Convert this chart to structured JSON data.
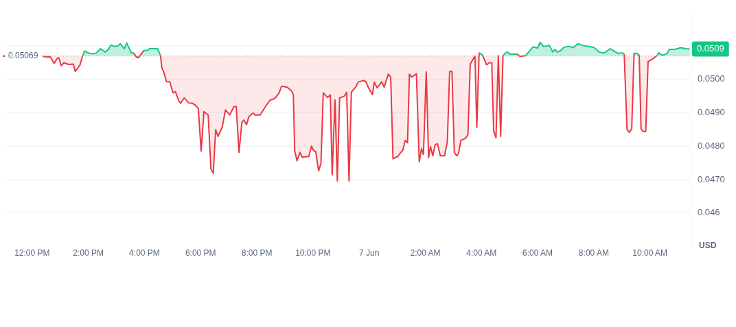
{
  "chart_data": {
    "type": "area",
    "ylabel": "USD",
    "xlim": [
      "--06-06T11:03",
      "--06-07T11:27"
    ],
    "ylim": [
      0.045,
      0.052
    ],
    "xticks": [
      {
        "value": "--06-06T12:00",
        "label": "12:00 PM"
      },
      {
        "value": "--06-06T14:00",
        "label": "2:00 PM"
      },
      {
        "value": "--06-06T16:00",
        "label": "4:00 PM"
      },
      {
        "value": "--06-06T18:00",
        "label": "6:00 PM"
      },
      {
        "value": "--06-06T20:00",
        "label": "8:00 PM"
      },
      {
        "value": "--06-06T22:00",
        "label": "10:00 PM"
      },
      {
        "value": "--06-07",
        "label": "7 Jun"
      },
      {
        "value": "--06-07T02:00",
        "label": "2:00 AM"
      },
      {
        "value": "--06-07T04:00",
        "label": "4:00 AM"
      },
      {
        "value": "--06-07T06:00",
        "label": "6:00 AM"
      },
      {
        "value": "--06-07T08:00",
        "label": "8:00 AM"
      },
      {
        "value": "--06-07T10:00",
        "label": "10:00 AM"
      }
    ],
    "yticks": [
      0.046,
      {
        "value": 0.047,
        "label": "0.0470"
      },
      {
        "value": 0.048,
        "label": "0.0480"
      },
      {
        "value": 0.049,
        "label": "0.0490"
      },
      {
        "value": 0.05,
        "label": "0.0500"
      },
      {
        "value": 0.051,
        "label": null
      }
    ],
    "grid": "y",
    "legend": false,
    "marker": "none",
    "ref_lines": [
      {
        "axis": "y",
        "value": 0.05069,
        "label": "0.05069",
        "color": "#8a919e",
        "line_style": "dotted"
      }
    ],
    "annotations": [
      "0.0509"
    ],
    "series": [
      {
        "x": [
          "--06-06T12:23",
          "--06-06T12:34",
          "--06-06T12:38",
          "--06-06T12:47",
          "--06-06T12:53",
          "--06-06T12:57",
          "--06-06T13:02",
          "--06-06T13:08",
          "--06-06T13:18",
          "--06-06T13:28",
          "--06-06T13:32",
          "--06-06T13:42",
          "--06-06T13:48",
          "--06-06T13:52",
          "--06-06T13:59",
          "--06-06T14:07",
          "--06-06T14:16",
          "--06-06T14:26",
          "--06-06T14:36",
          "--06-06T14:43",
          "--06-06T14:48",
          "--06-06T14:56",
          "--06-06T15:03",
          "--06-06T15:08",
          "--06-06T15:17",
          "--06-06T15:22",
          "--06-06T15:32",
          "--06-06T15:37",
          "--06-06T15:42",
          "--06-06T15:47",
          "--06-06T15:59",
          "--06-06T16:07",
          "--06-06T16:11",
          "--06-06T16:19",
          "--06-06T16:28",
          "--06-06T16:34",
          "--06-06T16:37",
          "--06-06T16:41",
          "--06-06T16:47",
          "--06-06T16:54",
          "--06-06T17:01",
          "--06-06T17:06",
          "--06-06T17:13",
          "--06-06T17:17",
          "--06-06T17:25",
          "--06-06T17:34",
          "--06-06T17:42",
          "--06-06T17:49",
          "--06-06T17:55",
          "--06-06T18:01",
          "--06-06T18:07",
          "--06-06T18:16",
          "--06-06T18:22",
          "--06-06T18:27",
          "--06-06T18:32",
          "--06-06T18:37",
          "--06-06T18:46",
          "--06-06T18:53",
          "--06-06T19:02",
          "--06-06T19:11",
          "--06-06T19:16",
          "--06-06T19:22",
          "--06-06T19:28",
          "--06-06T19:32",
          "--06-06T19:38",
          "--06-06T19:43",
          "--06-06T19:52",
          "--06-06T19:56",
          "--06-06T20:07",
          "--06-06T20:19",
          "--06-06T20:28",
          "--06-06T20:38",
          "--06-06T20:47",
          "--06-06T20:53",
          "--06-06T21:05",
          "--06-06T21:14",
          "--06-06T21:18",
          "--06-06T21:21",
          "--06-06T21:26",
          "--06-06T21:32",
          "--06-06T21:37",
          "--06-06T21:51",
          "--06-06T21:57",
          "--06-06T22:01",
          "--06-06T22:06",
          "--06-06T22:12",
          "--06-06T22:17",
          "--06-06T22:22",
          "--06-06T22:31",
          "--06-06T22:37",
          "--06-06T22:41",
          "--06-06T22:47",
          "--06-06T22:52",
          "--06-06T22:57",
          "--06-06T23:07",
          "--06-06T23:12",
          "--06-06T23:17",
          "--06-06T23:22",
          "--06-06T23:31",
          "--06-06T23:37",
          "--06-06T23:49",
          "--06-06T23:53",
          "--06-06T23:58",
          "--06-07T00:07",
          "--06-07T00:11",
          "--06-07T00:17",
          "--06-07T00:27",
          "--06-07T00:32",
          "--06-07T00:41",
          "--06-07T00:46",
          "--06-07T00:51",
          "--06-07T01:01",
          "--06-07T01:07",
          "--06-07T01:12",
          "--06-07T01:17",
          "--06-07T01:22",
          "--06-07T01:26",
          "--06-07T01:31",
          "--06-07T01:41",
          "--06-07T01:47",
          "--06-07T01:52",
          "--06-07T01:56",
          "--06-07T02:02",
          "--06-07T02:07",
          "--06-07T02:11",
          "--06-07T02:16",
          "--06-07T02:21",
          "--06-07T02:26",
          "--06-07T02:32",
          "--06-07T02:41",
          "--06-07T02:47",
          "--06-07T02:52",
          "--06-07T02:57",
          "--06-07T03:02",
          "--06-07T03:07",
          "--06-07T03:11",
          "--06-07T03:16",
          "--06-07T03:26",
          "--06-07T03:31",
          "--06-07T03:36",
          "--06-07T03:46",
          "--06-07T03:50",
          "--06-07T03:55",
          "--06-07T04:02",
          "--06-07T04:11",
          "--06-07T04:17",
          "--06-07T04:22",
          "--06-07T04:26",
          "--06-07T04:31",
          "--06-07T04:36",
          "--06-07T04:41",
          "--06-07T04:46",
          "--06-07T04:52",
          "--06-07T04:56",
          "--06-07T05:01",
          "--06-07T05:16",
          "--06-07T05:22",
          "--06-07T05:34",
          "--06-07T05:41",
          "--06-07T05:50",
          "--06-07T06:00",
          "--06-07T06:05",
          "--06-07T06:13",
          "--06-07T06:25",
          "--06-07T06:32",
          "--06-07T06:37",
          "--06-07T06:42",
          "--06-07T06:49",
          "--06-07T06:56",
          "--06-07T07:06",
          "--06-07T07:16",
          "--06-07T07:26",
          "--06-07T07:35",
          "--06-07T07:46",
          "--06-07T08:00",
          "--06-07T08:12",
          "--06-07T08:22",
          "--06-07T08:35",
          "--06-07T08:52",
          "--06-07T08:59",
          "--06-07T09:05",
          "--06-07T09:11",
          "--06-07T09:16",
          "--06-07T09:21",
          "--06-07T09:26",
          "--06-07T09:33",
          "--06-07T09:37",
          "--06-07T09:41",
          "--06-07T09:45",
          "--06-07T09:51",
          "--06-07T09:56",
          "--06-07T10:02",
          "--06-07T10:14",
          "--06-07T10:19",
          "--06-07T10:26",
          "--06-07T10:37",
          "--06-07T10:41",
          "--06-07T10:53",
          "--06-07T11:06",
          "--06-07T11:16",
          "--06-07T11:25"
        ],
        "values": [
          0.05068,
          0.05066,
          0.05068,
          0.05047,
          0.05061,
          0.05064,
          0.0504,
          0.05049,
          0.05044,
          0.05045,
          0.05023,
          0.05042,
          0.0507,
          0.05084,
          0.05079,
          0.05076,
          0.05077,
          0.05091,
          0.05081,
          0.05089,
          0.05102,
          0.05098,
          0.05099,
          0.05106,
          0.05091,
          0.05108,
          0.05078,
          0.05078,
          0.05067,
          0.05064,
          0.05086,
          0.05086,
          0.05091,
          0.05091,
          0.05091,
          0.05072,
          0.05034,
          0.05022,
          0.04992,
          0.04992,
          0.04959,
          0.04963,
          0.04936,
          0.04928,
          0.04944,
          0.04929,
          0.04928,
          0.04922,
          0.04912,
          0.04785,
          0.04903,
          0.04893,
          0.04731,
          0.04719,
          0.04849,
          0.04829,
          0.04856,
          0.04908,
          0.04893,
          0.04918,
          0.04918,
          0.04781,
          0.0487,
          0.04878,
          0.04864,
          0.04888,
          0.04899,
          0.04893,
          0.04893,
          0.04919,
          0.04937,
          0.04942,
          0.04957,
          0.04979,
          0.04976,
          0.04965,
          0.04954,
          0.04785,
          0.04756,
          0.04781,
          0.04767,
          0.04769,
          0.048,
          0.04787,
          0.04783,
          0.04726,
          0.04748,
          0.04959,
          0.04945,
          0.04953,
          0.04714,
          0.04938,
          0.04696,
          0.04944,
          0.04949,
          0.04961,
          0.04696,
          0.04961,
          0.04976,
          0.04992,
          0.04996,
          0.04992,
          0.04976,
          0.04954,
          0.04991,
          0.04974,
          0.04992,
          0.04976,
          0.05015,
          0.05006,
          0.04762,
          0.04769,
          0.0478,
          0.04788,
          0.04817,
          0.0481,
          0.05015,
          0.05006,
          0.05016,
          0.04753,
          0.04792,
          0.04775,
          0.05022,
          0.04765,
          0.04798,
          0.04771,
          0.04804,
          0.04807,
          0.04771,
          0.04771,
          0.04812,
          0.05023,
          0.05023,
          0.04781,
          0.04771,
          0.04778,
          0.04817,
          0.04823,
          0.04834,
          0.05045,
          0.05069,
          0.04856,
          0.05079,
          0.05072,
          0.05043,
          0.05049,
          0.05049,
          0.04846,
          0.04825,
          0.0507,
          0.04829,
          0.0507,
          0.05079,
          0.05081,
          0.05074,
          0.05075,
          0.05068,
          0.0507,
          0.05081,
          0.05096,
          0.05093,
          0.0511,
          0.05097,
          0.05101,
          0.05081,
          0.05089,
          0.05081,
          0.05085,
          0.05095,
          0.05098,
          0.05094,
          0.05106,
          0.05101,
          0.05098,
          0.05095,
          0.05081,
          0.05078,
          0.05091,
          0.05077,
          0.05079,
          0.05075,
          0.04849,
          0.04841,
          0.04852,
          0.05078,
          0.05076,
          0.05072,
          0.04852,
          0.04844,
          0.04844,
          0.05053,
          0.05057,
          0.05069,
          0.05079,
          0.05071,
          0.05077,
          0.05089,
          0.05089,
          0.05094,
          0.05091,
          0.0509
        ],
        "colors": [
          "#ea3943",
          "#ea3943",
          "#ea3943",
          "#ea3943",
          "#ea3943",
          "#ea3943",
          "#ea3943",
          "#ea3943",
          "#ea3943",
          "#ea3943",
          "#ea3943",
          "#ea3943",
          "#16c784",
          "#16c784",
          "#16c784",
          "#16c784",
          "#16c784",
          "#16c784",
          "#16c784",
          "#16c784",
          "#16c784",
          "#16c784",
          "#16c784",
          "#16c784",
          "#16c784",
          "#16c784",
          "#16c784",
          "#16c784",
          "#ea3943",
          "#ea3943",
          "#16c784",
          "#16c784",
          "#16c784",
          "#16c784",
          "#16c784",
          "#16c784",
          "#ea3943",
          "#ea3943",
          "#ea3943",
          "#ea3943",
          "#ea3943",
          "#ea3943",
          "#ea3943",
          "#ea3943",
          "#ea3943",
          "#ea3943",
          "#ea3943",
          "#ea3943",
          "#ea3943",
          "#ea3943",
          "#ea3943",
          "#ea3943",
          "#ea3943",
          "#ea3943",
          "#ea3943",
          "#ea3943",
          "#ea3943",
          "#ea3943",
          "#ea3943",
          "#ea3943",
          "#ea3943",
          "#ea3943",
          "#ea3943",
          "#ea3943",
          "#ea3943",
          "#ea3943",
          "#ea3943",
          "#ea3943",
          "#ea3943",
          "#ea3943",
          "#ea3943",
          "#ea3943",
          "#ea3943",
          "#ea3943",
          "#ea3943",
          "#ea3943",
          "#ea3943",
          "#ea3943",
          "#ea3943",
          "#ea3943",
          "#ea3943",
          "#ea3943",
          "#ea3943",
          "#ea3943",
          "#ea3943",
          "#ea3943",
          "#ea3943",
          "#ea3943",
          "#ea3943",
          "#ea3943",
          "#ea3943",
          "#ea3943",
          "#ea3943",
          "#ea3943",
          "#ea3943",
          "#ea3943",
          "#ea3943",
          "#ea3943",
          "#ea3943",
          "#ea3943",
          "#ea3943",
          "#ea3943",
          "#ea3943",
          "#ea3943",
          "#ea3943",
          "#ea3943",
          "#ea3943",
          "#ea3943",
          "#ea3943",
          "#ea3943",
          "#ea3943",
          "#ea3943",
          "#ea3943",
          "#ea3943",
          "#ea3943",
          "#ea3943",
          "#ea3943",
          "#ea3943",
          "#ea3943",
          "#ea3943",
          "#ea3943",
          "#ea3943",
          "#ea3943",
          "#ea3943",
          "#ea3943",
          "#ea3943",
          "#ea3943",
          "#ea3943",
          "#ea3943",
          "#ea3943",
          "#ea3943",
          "#ea3943",
          "#ea3943",
          "#ea3943",
          "#ea3943",
          "#ea3943",
          "#ea3943",
          "#ea3943",
          "#ea3943",
          "#ea3943",
          "#16c784",
          "#ea3943",
          "#16c784",
          "#16c784",
          "#ea3943",
          "#ea3943",
          "#ea3943",
          "#ea3943",
          "#ea3943",
          "#16c784",
          "#ea3943",
          "#16c784",
          "#16c784",
          "#16c784",
          "#16c784",
          "#16c784",
          "#ea3943",
          "#16c784",
          "#16c784",
          "#16c784",
          "#16c784",
          "#16c784",
          "#16c784",
          "#16c784",
          "#16c784",
          "#16c784",
          "#16c784",
          "#16c784",
          "#16c784",
          "#16c784",
          "#16c784",
          "#16c784",
          "#16c784",
          "#16c784",
          "#16c784",
          "#16c784",
          "#16c784",
          "#16c784",
          "#16c784",
          "#16c784",
          "#16c784",
          "#ea3943",
          "#ea3943",
          "#ea3943",
          "#16c784",
          "#16c784",
          "#16c784",
          "#ea3943",
          "#ea3943",
          "#ea3943",
          "#ea3943",
          "#ea3943",
          "#16c784",
          "#16c784",
          "#16c784",
          "#16c784",
          "#16c784",
          "#16c784",
          "#16c784",
          "#16c784",
          "#16c784"
        ]
      }
    ]
  }
}
